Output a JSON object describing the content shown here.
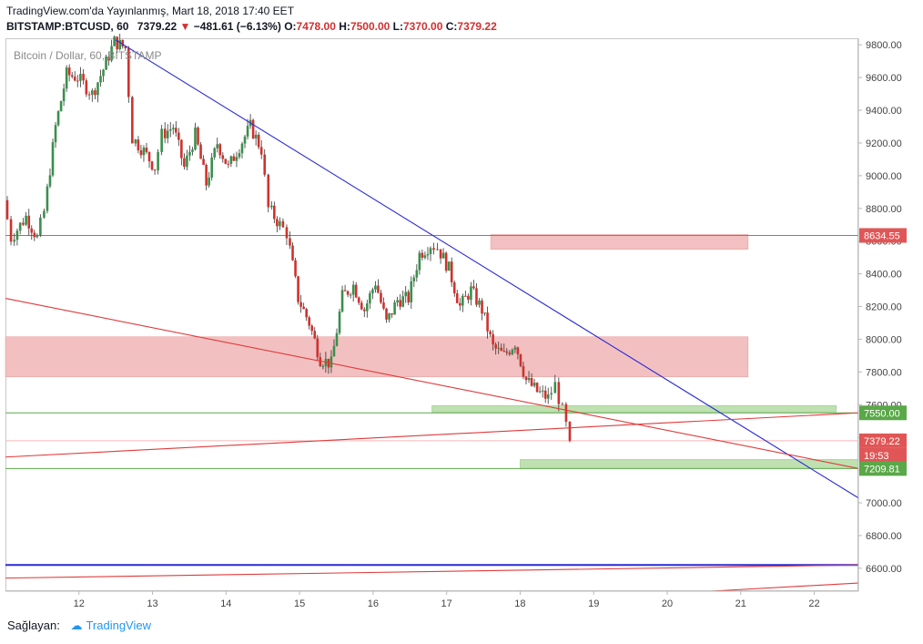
{
  "header": {
    "published": "TradingView.com'da Yayınlanmış, Mart 18, 2018 17:40 EET",
    "symbol": "BITSTAMP:BTCUSD, 60",
    "last": "7379.22",
    "change_arrow": "▼",
    "change": "−481.61 (−6.13%)",
    "o_label": "O:",
    "o_value": "7478.00",
    "h_label": "H:",
    "h_value": "7500.00",
    "l_label": "L:",
    "l_value": "7370.00",
    "c_label": "C:",
    "c_value": "7379.22"
  },
  "legend": "Bitcoin / Dollar, 60, BITSTAMP",
  "footer": {
    "label": "Sağlayan:",
    "brand": "TradingView"
  },
  "colors": {
    "up": "#3a8f4c",
    "down": "#d0312d",
    "trend_blue": "#2a2ad8",
    "trend_red": "#e03a3a",
    "resist_zone": "#f2c0c0",
    "support_zone": "#bfe0b0",
    "support_line": "#5aa848"
  },
  "chart_data": {
    "type": "candlestick",
    "title": "Bitcoin / Dollar, 60, BITSTAMP",
    "x_ticks": [
      "12",
      "13",
      "14",
      "15",
      "16",
      "17",
      "18",
      "19",
      "20",
      "21",
      "22"
    ],
    "y_ticks": [
      "9800.00",
      "9600.00",
      "9400.00",
      "9200.00",
      "9000.00",
      "8800.00",
      "8600.00",
      "8400.00",
      "8200.00",
      "8000.00",
      "7800.00",
      "7600.00",
      "7400.00",
      "7200.00",
      "7000.00",
      "6800.00",
      "6600.00"
    ],
    "ylim": [
      6460,
      9840
    ],
    "xlim": [
      11.0,
      22.6
    ],
    "price_labels": [
      {
        "text": "8634.55",
        "value": 8634.55,
        "color": "#e05656"
      },
      {
        "text": "7550.00",
        "value": 7550.0,
        "color": "#5aa848"
      },
      {
        "text": "7379.22",
        "value": 7379.22,
        "color": "#e05656"
      },
      {
        "text": "19:53",
        "value": 7290.0,
        "color": "#e05656"
      },
      {
        "text": "7209.81",
        "value": 7209.81,
        "color": "#5aa848"
      }
    ],
    "anchors": [
      [
        11.0,
        8850
      ],
      [
        11.1,
        8620
      ],
      [
        11.3,
        8750
      ],
      [
        11.45,
        8620
      ],
      [
        11.55,
        8780
      ],
      [
        11.7,
        9300
      ],
      [
        11.85,
        9620
      ],
      [
        12.0,
        9600
      ],
      [
        12.2,
        9500
      ],
      [
        12.35,
        9650
      ],
      [
        12.5,
        9820
      ],
      [
        12.65,
        9780
      ],
      [
        12.75,
        9230
      ],
      [
        12.9,
        9150
      ],
      [
        13.05,
        9050
      ],
      [
        13.15,
        9250
      ],
      [
        13.3,
        9300
      ],
      [
        13.45,
        9050
      ],
      [
        13.6,
        9250
      ],
      [
        13.75,
        8950
      ],
      [
        13.9,
        9200
      ],
      [
        14.05,
        9050
      ],
      [
        14.2,
        9180
      ],
      [
        14.35,
        9300
      ],
      [
        14.5,
        9160
      ],
      [
        14.6,
        8800
      ],
      [
        14.75,
        8700
      ],
      [
        14.85,
        8650
      ],
      [
        15.0,
        8250
      ],
      [
        15.15,
        8100
      ],
      [
        15.3,
        7880
      ],
      [
        15.45,
        7850
      ],
      [
        15.6,
        8260
      ],
      [
        15.75,
        8330
      ],
      [
        15.9,
        8180
      ],
      [
        16.05,
        8350
      ],
      [
        16.2,
        8100
      ],
      [
        16.35,
        8240
      ],
      [
        16.5,
        8250
      ],
      [
        16.65,
        8520
      ],
      [
        16.8,
        8580
      ],
      [
        16.9,
        8560
      ],
      [
        17.05,
        8430
      ],
      [
        17.2,
        8200
      ],
      [
        17.35,
        8300
      ],
      [
        17.5,
        8180
      ],
      [
        17.65,
        7950
      ],
      [
        17.8,
        7900
      ],
      [
        17.95,
        7980
      ],
      [
        18.1,
        7750
      ],
      [
        18.25,
        7680
      ],
      [
        18.4,
        7640
      ],
      [
        18.5,
        7720
      ],
      [
        18.6,
        7560
      ],
      [
        18.7,
        7379.22
      ]
    ],
    "zones": [
      {
        "name": "upper-resistance",
        "x0": 17.6,
        "x1": 21.1,
        "y0": 8550,
        "y1": 8640,
        "kind": "resistance"
      },
      {
        "name": "mid-resistance",
        "x0": 11.0,
        "x1": 21.1,
        "y0": 7770,
        "y1": 8015,
        "kind": "resistance"
      },
      {
        "name": "support-1",
        "x0": 16.8,
        "x1": 22.3,
        "y0": 7555,
        "y1": 7595,
        "kind": "support"
      },
      {
        "name": "support-2",
        "x0": 18.0,
        "x1": 22.6,
        "y0": 7210,
        "y1": 7265,
        "kind": "support"
      }
    ],
    "hlines": [
      {
        "value": 8634.55,
        "color": "#e05656",
        "width": 1
      },
      {
        "value": 7550.0,
        "color": "#5aa848",
        "width": 1
      },
      {
        "value": 7209.81,
        "color": "#5aa848",
        "width": 1
      },
      {
        "value": 7379.22,
        "color": "#f3b8b8",
        "width": 1
      },
      {
        "value": 6620,
        "color": "#2a2ad8",
        "width": 2
      }
    ],
    "trendlines": [
      {
        "x0": 12.5,
        "y0": 9830,
        "x1": 22.6,
        "y1": 7030,
        "color": "#2a2ad8"
      },
      {
        "x0": 11.0,
        "y0": 8250,
        "x1": 22.6,
        "y1": 7210,
        "color": "#e03a3a"
      },
      {
        "x0": 11.0,
        "y0": 7280,
        "x1": 22.6,
        "y1": 7550,
        "color": "#e03a3a"
      },
      {
        "x0": 11.0,
        "y0": 6540,
        "x1": 22.6,
        "y1": 6620,
        "color": "#e03a3a"
      },
      {
        "x0": 20.6,
        "y0": 6460,
        "x1": 22.6,
        "y1": 6510,
        "color": "#e03a3a"
      }
    ]
  }
}
